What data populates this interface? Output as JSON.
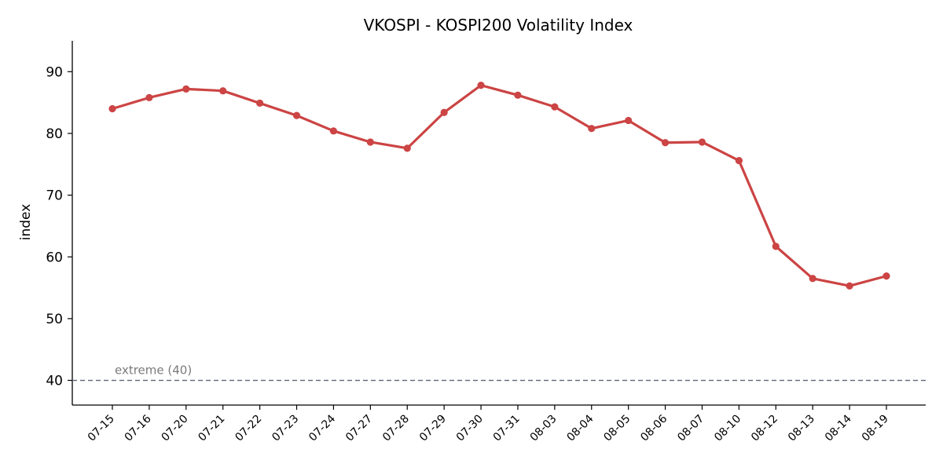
{
  "chart_data": {
    "type": "line",
    "title": "VKOSPI - KOSPI200 Volatility Index",
    "xlabel": "",
    "ylabel": "index",
    "ylim": [
      36,
      95
    ],
    "yticks": [
      40,
      50,
      60,
      70,
      80,
      90
    ],
    "grid": false,
    "legend": "none",
    "categories": [
      "07-15",
      "07-16",
      "07-20",
      "07-21",
      "07-22",
      "07-23",
      "07-24",
      "07-27",
      "07-28",
      "07-29",
      "07-30",
      "07-31",
      "08-03",
      "08-04",
      "08-05",
      "08-06",
      "08-07",
      "08-10",
      "08-12",
      "08-13",
      "08-14",
      "08-19"
    ],
    "series": [
      {
        "values": [
          84.0,
          85.8,
          87.2,
          86.9,
          84.9,
          82.9,
          80.4,
          78.6,
          77.6,
          83.4,
          87.8,
          86.2,
          84.3,
          80.8,
          82.1,
          78.5,
          78.6,
          75.6,
          61.7,
          56.5,
          55.3,
          56.9
        ],
        "color": "#cc4444"
      }
    ],
    "reference_line": {
      "y": 40,
      "label": "extreme (40)",
      "color": "#5f6478",
      "style": "dashed"
    }
  }
}
